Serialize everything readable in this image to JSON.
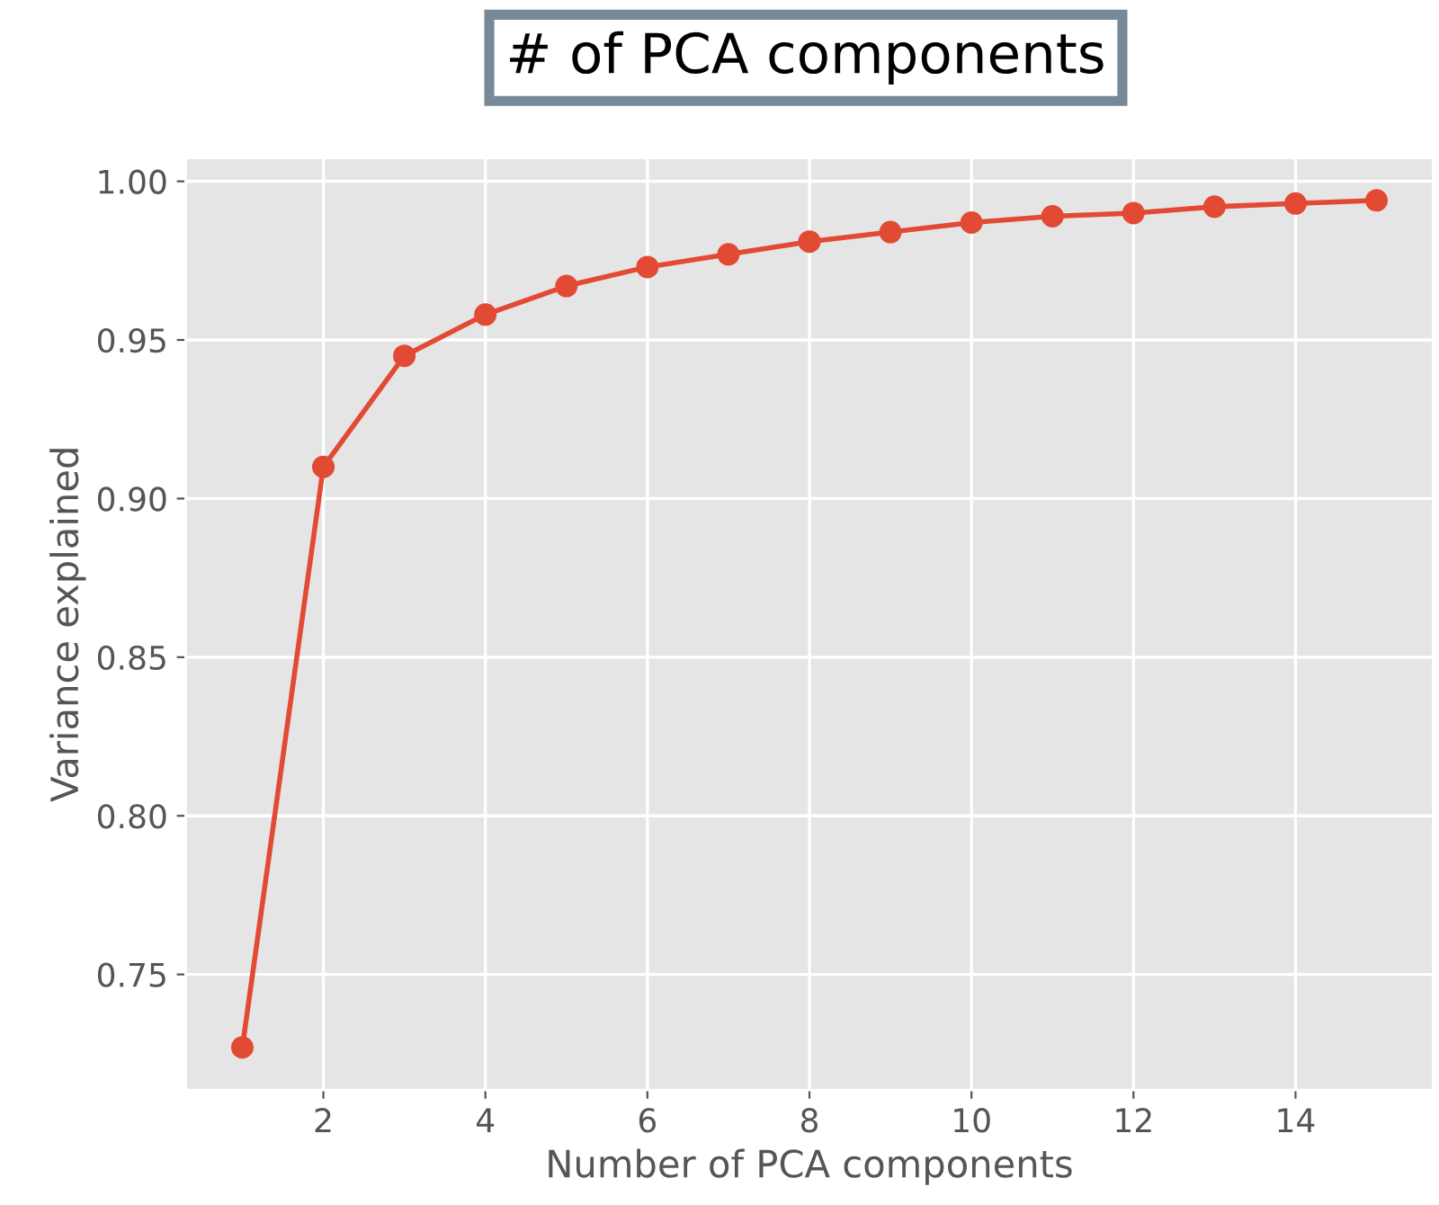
{
  "chart_data": {
    "type": "line",
    "title": "# of PCA components",
    "xlabel": "Number of PCA components",
    "ylabel": "Variance explained",
    "x": [
      1,
      2,
      3,
      4,
      5,
      6,
      7,
      8,
      9,
      10,
      11,
      12,
      13,
      14,
      15
    ],
    "series": [
      {
        "color": "#e24a33",
        "values": [
          0.727,
          0.91,
          0.945,
          0.958,
          0.967,
          0.973,
          0.977,
          0.981,
          0.984,
          0.987,
          0.989,
          0.99,
          0.992,
          0.993,
          0.994
        ]
      }
    ],
    "xlim": [
      0.3,
      15.7
    ],
    "ylim": [
      0.7136,
      1.0074
    ],
    "xticks": [
      2,
      4,
      6,
      8,
      10,
      12,
      14
    ],
    "yticks": [
      0.75,
      {
        "value": 0.8,
        "label": "0.80"
      },
      0.85,
      {
        "value": 0.9,
        "label": "0.90"
      },
      0.95,
      {
        "value": 1,
        "label": "1.00"
      }
    ],
    "grid": true,
    "marker": "circle",
    "line_style": "solid"
  }
}
